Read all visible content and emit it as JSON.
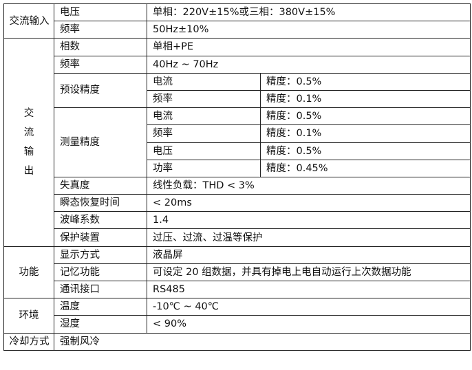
{
  "ac_input": {
    "category": "交流输入",
    "rows": [
      {
        "label": "电压",
        "value": "单相：220V±15%或三相：380V±15%"
      },
      {
        "label": "频率",
        "value": "50Hz±10%"
      }
    ]
  },
  "ac_output": {
    "category_chars": [
      "交",
      "流",
      "输",
      "出"
    ],
    "phase": {
      "label": "相数",
      "value": "单相+PE"
    },
    "frequency": {
      "label": "频率",
      "value": "40Hz ~ 70Hz"
    },
    "preset_precision": {
      "label": "预设精度",
      "items": [
        {
          "name": "电流",
          "value": "精度：0.5%"
        },
        {
          "name": "频率",
          "value": "精度：0.1%"
        }
      ]
    },
    "measure_precision": {
      "label": "测量精度",
      "items": [
        {
          "name": "电流",
          "value": "精度：0.5%"
        },
        {
          "name": "频率",
          "value": "精度：0.1%"
        },
        {
          "name": "电压",
          "value": "精度：0.5%"
        },
        {
          "name": "功率",
          "value": "精度：0.45%"
        }
      ]
    },
    "distortion": {
      "label": "失真度",
      "value": "线性负载：THD < 3%"
    },
    "recovery": {
      "label": "瞬态恢复时间",
      "value": " < 20ms"
    },
    "crest": {
      "label": "波峰系数",
      "value": "1.4"
    },
    "protection": {
      "label": "保护装置",
      "value": "过压、过流、过温等保护"
    }
  },
  "function": {
    "category": "功能",
    "rows": [
      {
        "label": "显示方式",
        "value": "液晶屏"
      },
      {
        "label": "记忆功能",
        "value": "可设定 20 组数据，并具有掉电上电自动运行上次数据功能"
      },
      {
        "label": "通讯接口",
        "value": "RS485"
      }
    ]
  },
  "environment": {
    "category": "环境",
    "rows": [
      {
        "label": "温度",
        "value": "-10℃ ~ 40℃"
      },
      {
        "label": "湿度",
        "value": " < 90%"
      }
    ]
  },
  "cooling": {
    "category": "冷却方式",
    "value": "强制风冷"
  }
}
